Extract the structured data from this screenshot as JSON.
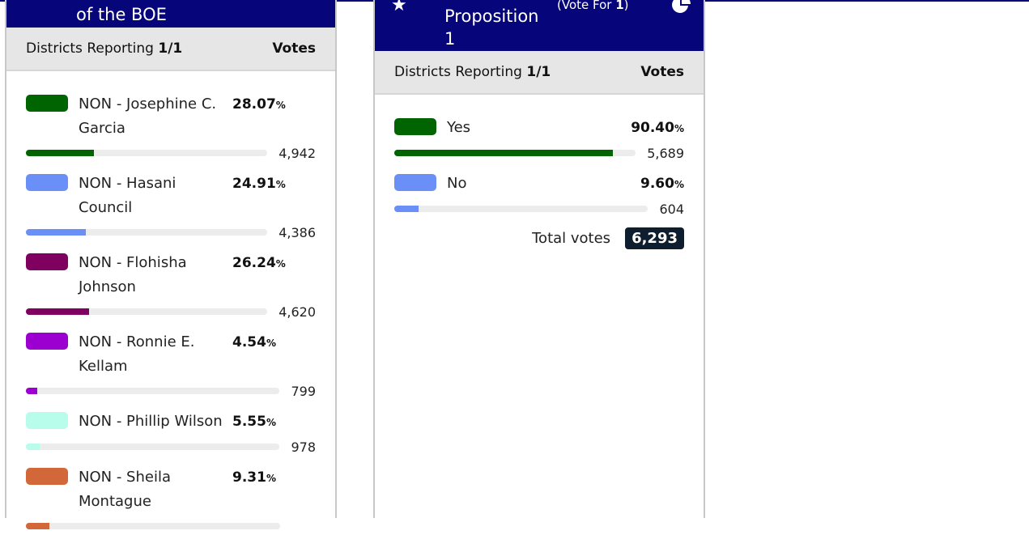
{
  "left": {
    "title": "of the BOE",
    "districts_label": "Districts Reporting",
    "districts_value": "1/1",
    "votes_label": "Votes",
    "candidates": [
      {
        "name": "NON - Josephine C. Garcia",
        "pct": "28.07",
        "pct_value": 28.07,
        "votes": "4,942",
        "color": "#006400"
      },
      {
        "name": "NON - Hasani Council",
        "pct": "24.91",
        "pct_value": 24.91,
        "votes": "4,386",
        "color": "#6a8ff7"
      },
      {
        "name": "NON - Flohisha Johnson",
        "pct": "26.24",
        "pct_value": 26.24,
        "votes": "4,620",
        "color": "#800060"
      },
      {
        "name": "NON - Ronnie E. Kellam",
        "pct": "4.54",
        "pct_value": 4.54,
        "votes": "799",
        "color": "#9b00d0"
      },
      {
        "name": "NON - Phillip Wilson",
        "pct": "5.55",
        "pct_value": 5.55,
        "votes": "978",
        "color": "#b8fcec"
      },
      {
        "name": "NON - Sheila Montague",
        "pct": "9.31",
        "pct_value": 9.31,
        "votes": "",
        "color": "#d2683a"
      }
    ]
  },
  "right": {
    "title": "Proposition 1",
    "vote_for": "(Vote For ",
    "vote_for_n": "1",
    "vote_for_end": ")",
    "districts_label": "Districts Reporting",
    "districts_value": "1/1",
    "votes_label": "Votes",
    "candidates": [
      {
        "name": "Yes",
        "pct": "90.40",
        "pct_value": 90.4,
        "votes": "5,689",
        "color": "#006400"
      },
      {
        "name": "No",
        "pct": "9.60",
        "pct_value": 9.6,
        "votes": "604",
        "color": "#6a8ff7"
      }
    ],
    "total_label": "Total votes",
    "total_value": "6,293"
  },
  "pct_sign": "%",
  "icons": {
    "favorite": "star-icon",
    "chart": "pie-chart-icon"
  }
}
